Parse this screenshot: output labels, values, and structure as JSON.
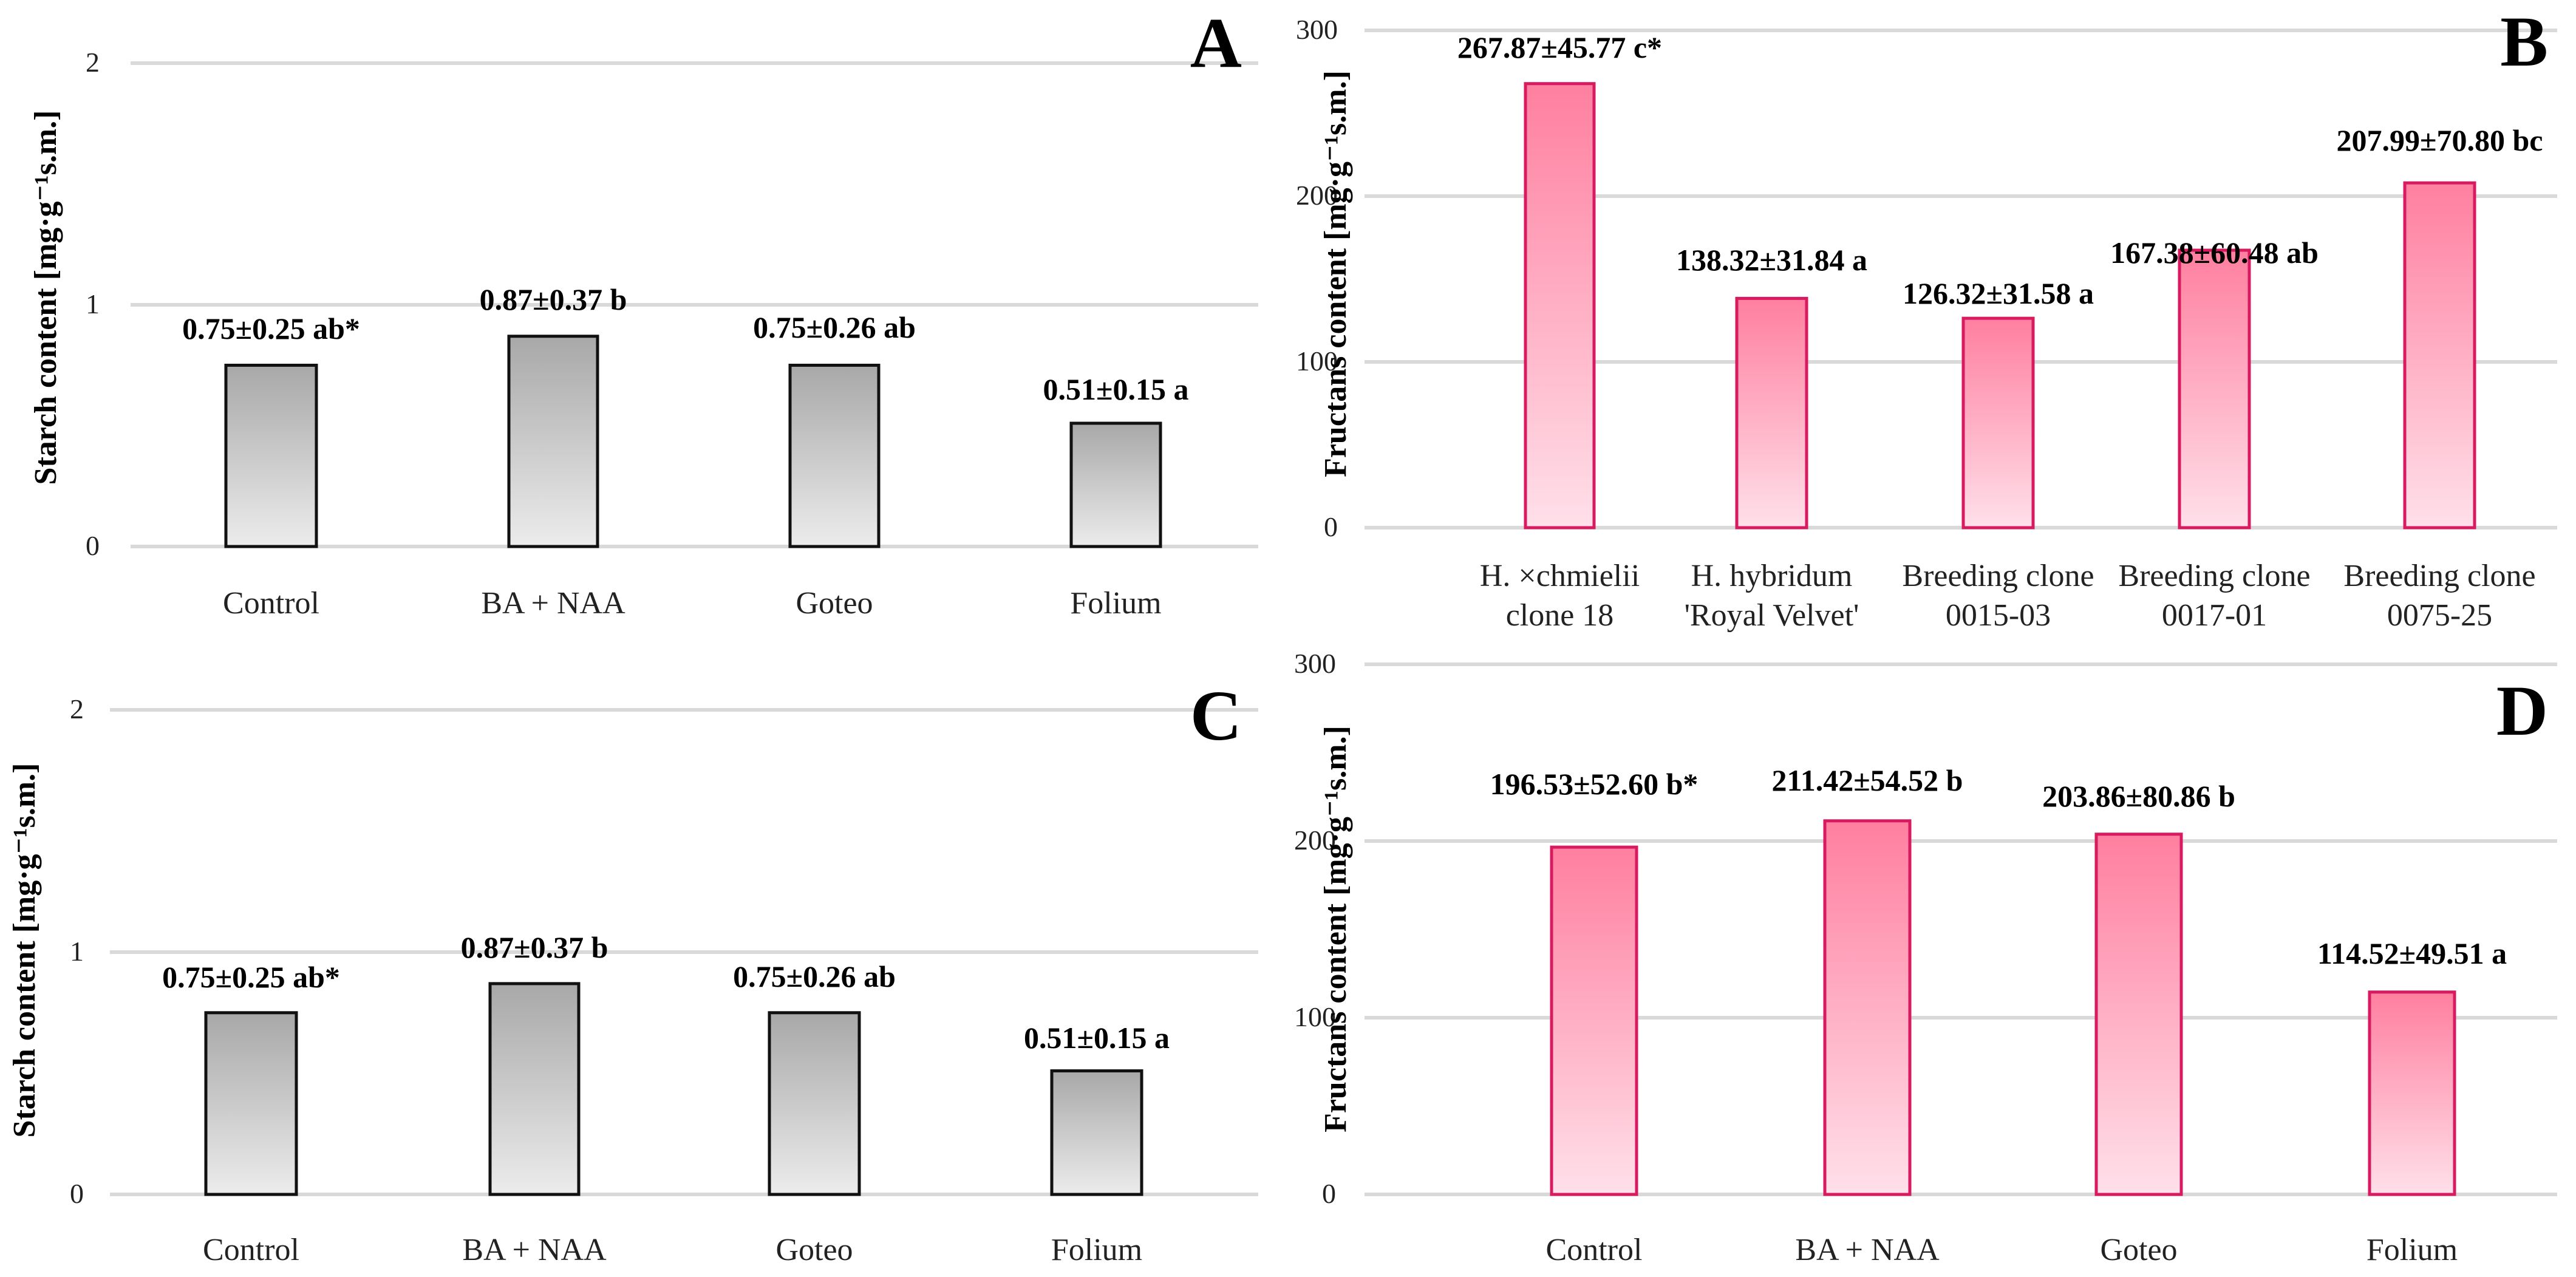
{
  "chart_data": [
    {
      "panel": "A",
      "type": "bar",
      "ylabel": "Starch content [mg·g⁻¹s.m.]",
      "ylim": [
        0,
        2
      ],
      "yticks": [
        "0",
        "1",
        "2"
      ],
      "categories": [
        [
          "Control"
        ],
        [
          "BA + NAA"
        ],
        [
          "Goteo"
        ],
        [
          "Folium"
        ]
      ],
      "values": [
        0.75,
        0.87,
        0.75,
        0.51
      ],
      "data_labels": [
        "0.75±0.25 ab*",
        "0.87±0.37 b",
        "0.75±0.26 ab",
        "0.51±0.15 a"
      ],
      "style": "gray"
    },
    {
      "panel": "B",
      "type": "bar",
      "ylabel": "Fructans content [mg·g⁻¹s.m.]",
      "ylim": [
        0,
        300
      ],
      "yticks": [
        "0",
        "100",
        "200",
        "300"
      ],
      "categories": [
        [
          "H. ×chmielii",
          "clone 18"
        ],
        [
          "H. hybridum",
          "'Royal Velvet'"
        ],
        [
          "Breeding clone",
          "0015-03"
        ],
        [
          "Breeding clone",
          "0017-01"
        ],
        [
          "Breeding clone",
          "0075-25"
        ]
      ],
      "values": [
        267.87,
        138.32,
        126.32,
        167.38,
        207.99
      ],
      "data_labels": [
        "267.87±45.77 c*",
        "138.32±31.84 a",
        "126.32±31.58 a",
        "167.38±60.48 ab",
        "207.99±70.80 bc"
      ],
      "style": "pink"
    },
    {
      "panel": "C",
      "type": "bar",
      "ylabel": "Starch content [mg·g⁻¹s.m.]",
      "ylim": [
        0,
        2
      ],
      "yticks": [
        "0",
        "1",
        "2"
      ],
      "categories": [
        [
          "Control"
        ],
        [
          "BA + NAA"
        ],
        [
          "Goteo"
        ],
        [
          "Folium"
        ]
      ],
      "values": [
        0.75,
        0.87,
        0.75,
        0.51
      ],
      "data_labels": [
        "0.75±0.25 ab*",
        "0.87±0.37 b",
        "0.75±0.26 ab",
        "0.51±0.15 a"
      ],
      "style": "gray"
    },
    {
      "panel": "D",
      "type": "bar",
      "ylabel": "Fructans content [mg·g⁻¹s.m.]",
      "ylim": [
        0,
        300
      ],
      "yticks": [
        "0",
        "100",
        "200",
        "300"
      ],
      "categories": [
        [
          "Control"
        ],
        [
          "BA + NAA"
        ],
        [
          "Goteo"
        ],
        [
          "Folium"
        ]
      ],
      "values": [
        196.53,
        211.42,
        203.86,
        114.52
      ],
      "data_labels": [
        "196.53±52.60 b*",
        "211.42±54.52 b",
        "203.86±80.86 b",
        "114.52±49.51 a"
      ],
      "style": "pink"
    }
  ]
}
